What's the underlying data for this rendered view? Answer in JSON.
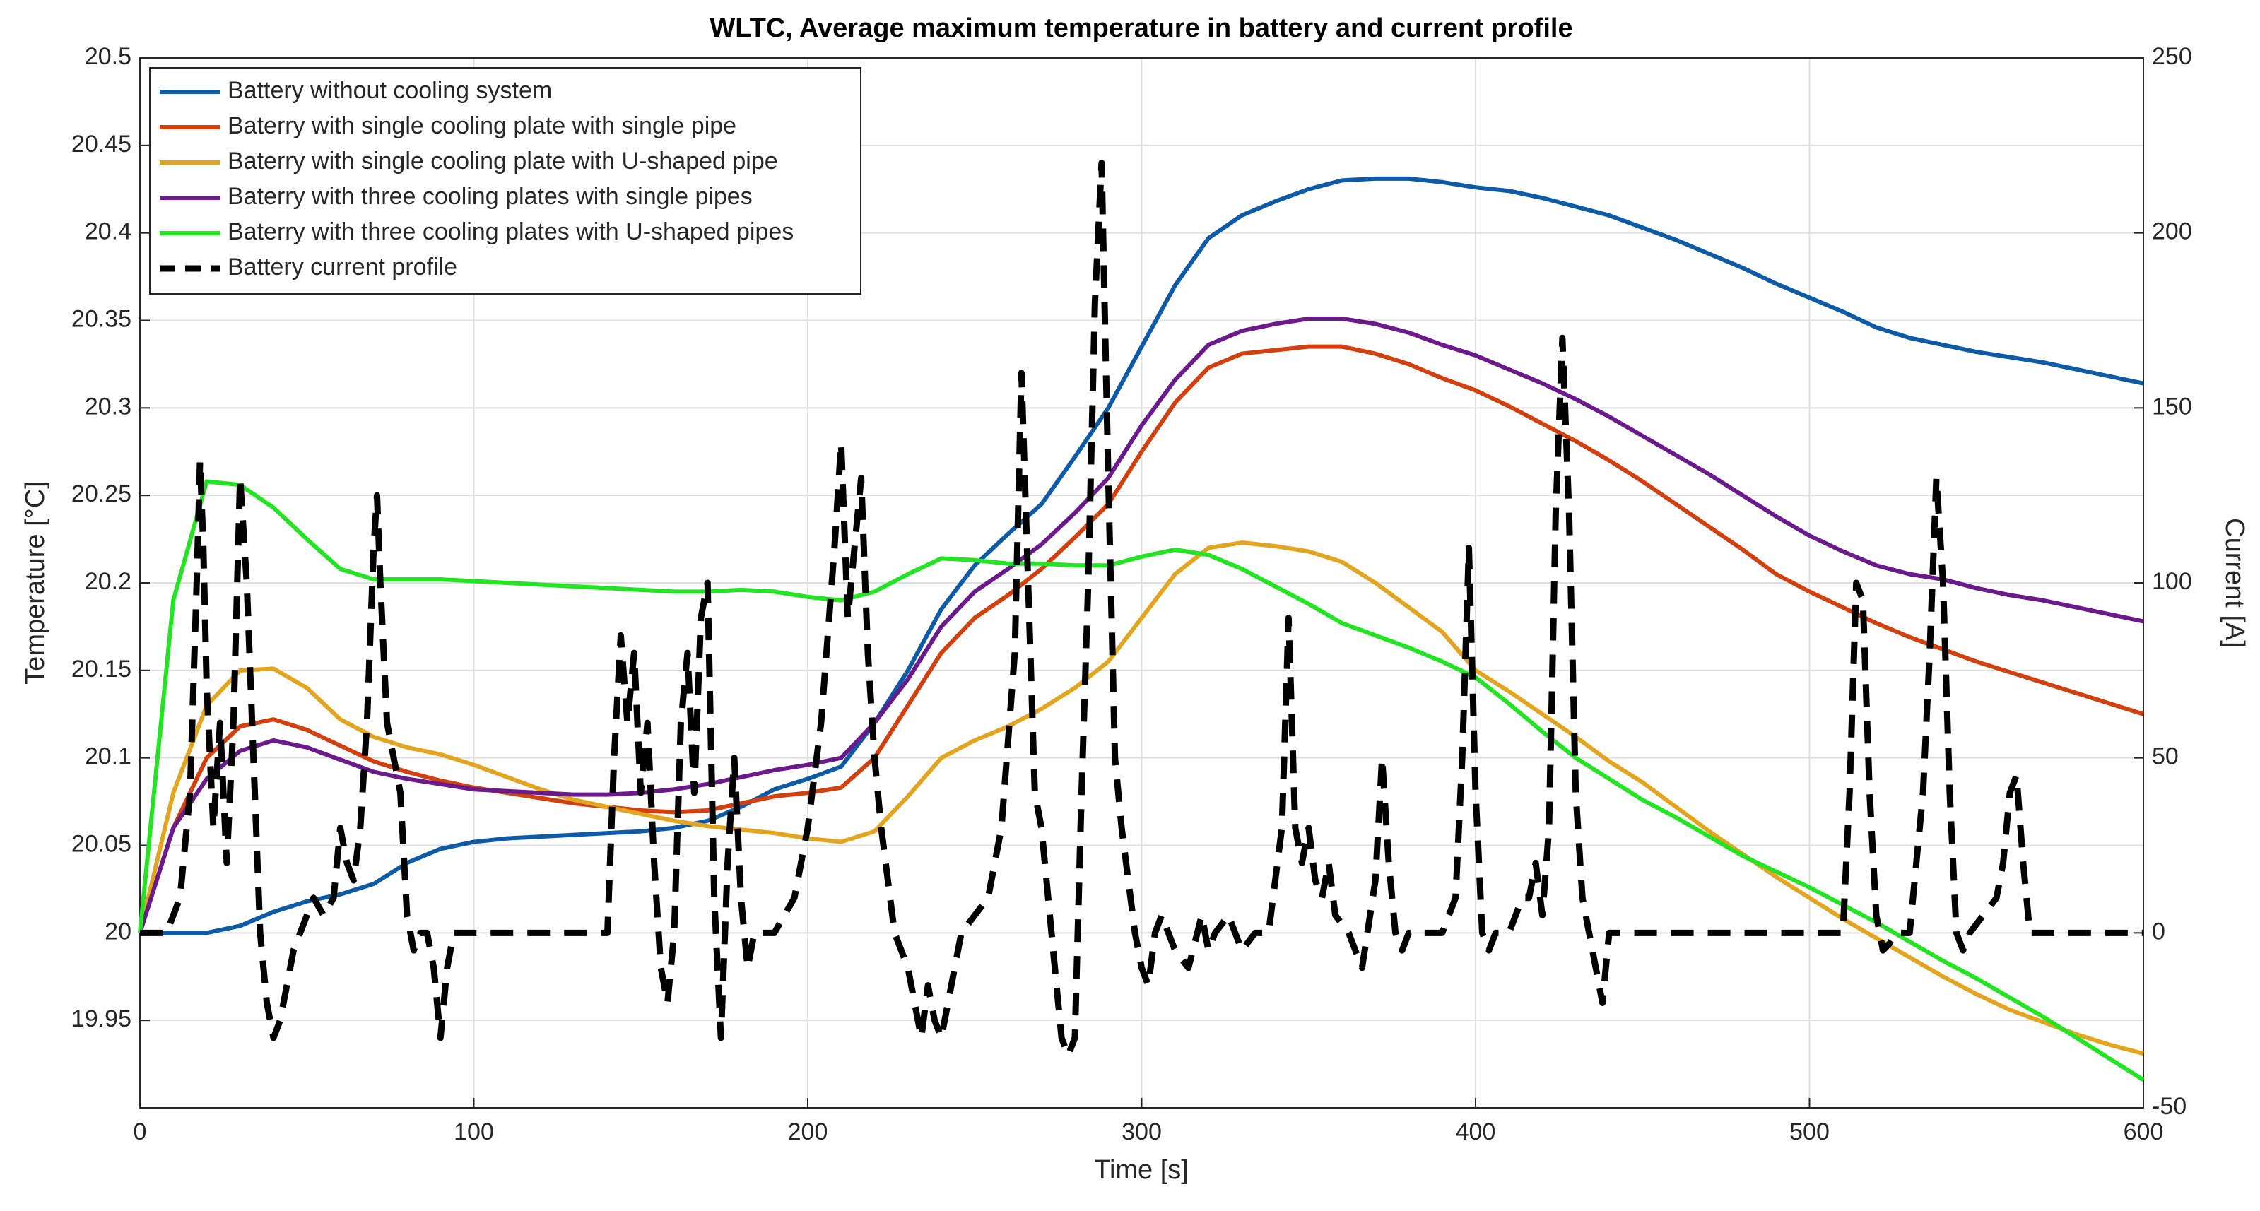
{
  "chart_data": {
    "type": "line",
    "title": "WLTC, Average maximum temperature in battery and current profile",
    "xlabel": "Time [s]",
    "ylabel": "Temperature [°C]",
    "y2label": "Current [A]",
    "xlim": [
      0,
      600
    ],
    "xticks": [
      0,
      100,
      200,
      300,
      400,
      500,
      600
    ],
    "ylim": [
      19.9,
      20.5
    ],
    "yticks": [
      19.95,
      20,
      20.05,
      20.1,
      20.15,
      20.2,
      20.25,
      20.3,
      20.35,
      20.4,
      20.45,
      20.5
    ],
    "y2lim": [
      -50,
      250
    ],
    "y2ticks": [
      -50,
      0,
      50,
      100,
      150,
      200,
      250
    ],
    "grid": true,
    "legend": "upper left",
    "x": [
      0,
      10,
      20,
      30,
      40,
      50,
      60,
      70,
      80,
      90,
      100,
      110,
      120,
      130,
      140,
      150,
      160,
      170,
      180,
      190,
      200,
      210,
      220,
      230,
      240,
      250,
      260,
      270,
      280,
      290,
      300,
      310,
      320,
      330,
      340,
      350,
      360,
      370,
      380,
      390,
      400,
      410,
      420,
      430,
      440,
      450,
      460,
      470,
      480,
      490,
      500,
      510,
      520,
      530,
      540,
      550,
      560,
      570,
      580,
      590,
      600
    ],
    "series": [
      {
        "name": "Battery without cooling system",
        "color": "#0d5aa7",
        "values": [
          20,
          20,
          20,
          20.004,
          20.012,
          20.018,
          20.022,
          20.028,
          20.04,
          20.048,
          20.052,
          20.054,
          20.055,
          20.056,
          20.057,
          20.058,
          20.06,
          20.064,
          20.072,
          20.082,
          20.088,
          20.095,
          20.12,
          20.15,
          20.185,
          20.21,
          20.228,
          20.245,
          20.272,
          20.3,
          20.335,
          20.37,
          20.397,
          20.41,
          20.418,
          20.425,
          20.43,
          20.431,
          20.431,
          20.429,
          20.426,
          20.424,
          20.42,
          20.415,
          20.41,
          20.403,
          20.396,
          20.388,
          20.38,
          20.371,
          20.363,
          20.355,
          20.346,
          20.34,
          20.336,
          20.332,
          20.329,
          20.326,
          20.322,
          20.318,
          20.314
        ]
      },
      {
        "name": "Baterry with single cooling plate with single pipe",
        "color": "#d2400f",
        "values": [
          20,
          20.06,
          20.1,
          20.118,
          20.122,
          20.116,
          20.107,
          20.098,
          20.092,
          20.087,
          20.083,
          20.08,
          20.077,
          20.074,
          20.072,
          20.07,
          20.069,
          20.07,
          20.074,
          20.078,
          20.08,
          20.083,
          20.1,
          20.13,
          20.16,
          20.18,
          20.193,
          20.208,
          20.226,
          20.245,
          20.275,
          20.303,
          20.323,
          20.331,
          20.333,
          20.335,
          20.335,
          20.331,
          20.325,
          20.317,
          20.31,
          20.301,
          20.291,
          20.281,
          20.27,
          20.258,
          20.245,
          20.232,
          20.219,
          20.205,
          20.195,
          20.186,
          20.177,
          20.169,
          20.162,
          20.155,
          20.149,
          20.143,
          20.137,
          20.131,
          20.125
        ]
      },
      {
        "name": "Baterry with single cooling plate with U-shaped pipe",
        "color": "#e3a51f",
        "values": [
          20,
          20.08,
          20.13,
          20.15,
          20.151,
          20.14,
          20.122,
          20.112,
          20.106,
          20.102,
          20.096,
          20.089,
          20.082,
          20.076,
          20.072,
          20.068,
          20.064,
          20.061,
          20.059,
          20.057,
          20.054,
          20.052,
          20.058,
          20.078,
          20.1,
          20.11,
          20.118,
          20.128,
          20.14,
          20.155,
          20.18,
          20.205,
          20.22,
          20.223,
          20.221,
          20.218,
          20.212,
          20.2,
          20.186,
          20.172,
          20.15,
          20.138,
          20.125,
          20.112,
          20.098,
          20.086,
          20.072,
          20.058,
          20.045,
          20.032,
          20.02,
          20.008,
          19.997,
          19.986,
          19.975,
          19.965,
          19.956,
          19.949,
          19.942,
          19.936,
          19.931
        ]
      },
      {
        "name": "Baterry with three cooling plates with single pipes",
        "color": "#6b1a8c",
        "values": [
          20,
          20.06,
          20.088,
          20.104,
          20.11,
          20.106,
          20.099,
          20.092,
          20.088,
          20.085,
          20.082,
          20.081,
          20.08,
          20.079,
          20.079,
          20.08,
          20.082,
          20.085,
          20.089,
          20.093,
          20.096,
          20.1,
          20.12,
          20.145,
          20.175,
          20.195,
          20.208,
          20.222,
          20.24,
          20.26,
          20.29,
          20.316,
          20.336,
          20.344,
          20.348,
          20.351,
          20.351,
          20.348,
          20.343,
          20.336,
          20.33,
          20.322,
          20.314,
          20.305,
          20.295,
          20.284,
          20.273,
          20.262,
          20.25,
          20.238,
          20.227,
          20.218,
          20.21,
          20.205,
          20.202,
          20.197,
          20.193,
          20.19,
          20.186,
          20.182,
          20.178
        ]
      },
      {
        "name": "Baterry with three cooling plates with U-shaped pipes",
        "color": "#22e422",
        "values": [
          20,
          20.19,
          20.258,
          20.256,
          20.243,
          20.225,
          20.208,
          20.202,
          20.202,
          20.202,
          20.201,
          20.2,
          20.199,
          20.198,
          20.197,
          20.196,
          20.195,
          20.195,
          20.196,
          20.195,
          20.192,
          20.19,
          20.195,
          20.205,
          20.214,
          20.213,
          20.211,
          20.211,
          20.21,
          20.21,
          20.215,
          20.219,
          20.216,
          20.208,
          20.198,
          20.188,
          20.177,
          20.17,
          20.163,
          20.155,
          20.146,
          20.131,
          20.115,
          20.1,
          20.088,
          20.076,
          20.066,
          20.055,
          20.044,
          20.035,
          20.026,
          20.016,
          20.006,
          19.995,
          19.984,
          19.974,
          19.963,
          19.952,
          19.94,
          19.928,
          19.916
        ]
      },
      {
        "name": "Battery current profile",
        "color": "#000000",
        "axis": "y2",
        "dashed": true,
        "x": [
          0,
          8,
          12,
          15,
          17,
          18,
          19,
          20,
          22,
          24,
          26,
          28,
          30,
          32,
          34,
          36,
          38,
          40,
          42,
          44,
          46,
          48,
          50,
          52,
          55,
          58,
          60,
          62,
          64,
          66,
          68,
          70,
          71,
          72,
          74,
          76,
          78,
          80,
          82,
          84,
          86,
          88,
          90,
          92,
          94,
          100,
          140,
          142,
          144,
          146,
          148,
          150,
          152,
          154,
          156,
          158,
          160,
          162,
          164,
          166,
          168,
          170,
          172,
          174,
          176,
          178,
          180,
          182,
          184,
          190,
          196,
          200,
          204,
          208,
          210,
          212,
          214,
          216,
          218,
          220,
          222,
          226,
          230,
          232,
          234,
          236,
          238,
          240,
          242,
          244,
          246,
          250,
          254,
          258,
          262,
          264,
          266,
          268,
          270,
          272,
          274,
          276,
          278,
          280,
          282,
          284,
          286,
          288,
          290,
          292,
          294,
          296,
          298,
          300,
          302,
          304,
          306,
          310,
          314,
          318,
          320,
          322,
          326,
          330,
          334,
          338,
          342,
          344,
          346,
          348,
          350,
          352,
          354,
          356,
          358,
          362,
          366,
          370,
          372,
          374,
          376,
          378,
          380,
          390,
          394,
          396,
          398,
          400,
          402,
          404,
          406,
          410,
          414,
          416,
          418,
          420,
          422,
          424,
          426,
          428,
          430,
          432,
          434,
          436,
          438,
          440,
          444,
          510,
          512,
          514,
          516,
          518,
          520,
          522,
          524,
          526,
          530,
          534,
          536,
          538,
          540,
          542,
          544,
          546,
          548,
          552,
          556,
          558,
          560,
          562,
          564,
          566,
          570,
          600
        ],
        "values": [
          0,
          0,
          10,
          40,
          100,
          135,
          110,
          70,
          30,
          60,
          20,
          60,
          130,
          100,
          50,
          0,
          -20,
          -30,
          -25,
          -15,
          -5,
          0,
          5,
          10,
          5,
          10,
          30,
          20,
          15,
          30,
          60,
          110,
          125,
          100,
          60,
          50,
          40,
          5,
          -5,
          0,
          0,
          -10,
          -30,
          -10,
          0,
          0,
          0,
          50,
          85,
          60,
          80,
          40,
          60,
          20,
          -10,
          -20,
          0,
          60,
          80,
          40,
          90,
          100,
          10,
          -30,
          20,
          50,
          10,
          -10,
          0,
          0,
          10,
          30,
          60,
          110,
          140,
          90,
          110,
          130,
          80,
          50,
          30,
          0,
          -10,
          -20,
          -30,
          -15,
          -25,
          -30,
          -20,
          -10,
          0,
          5,
          10,
          30,
          80,
          160,
          100,
          40,
          30,
          10,
          -10,
          -30,
          -35,
          -30,
          40,
          100,
          180,
          220,
          130,
          50,
          30,
          15,
          0,
          -10,
          -15,
          0,
          5,
          -5,
          -10,
          5,
          -5,
          0,
          5,
          -5,
          0,
          0,
          30,
          90,
          30,
          20,
          30,
          15,
          10,
          20,
          5,
          0,
          -10,
          15,
          50,
          20,
          0,
          -5,
          0,
          0,
          10,
          50,
          110,
          40,
          0,
          -5,
          0,
          0,
          10,
          10,
          20,
          5,
          30,
          120,
          170,
          120,
          40,
          10,
          0,
          -10,
          -20,
          0,
          0,
          0,
          40,
          100,
          95,
          40,
          5,
          -5,
          -3,
          0,
          0,
          40,
          80,
          130,
          100,
          40,
          0,
          -5,
          0,
          5,
          10,
          20,
          40,
          45,
          20,
          0,
          0,
          0
        ]
      }
    ]
  }
}
